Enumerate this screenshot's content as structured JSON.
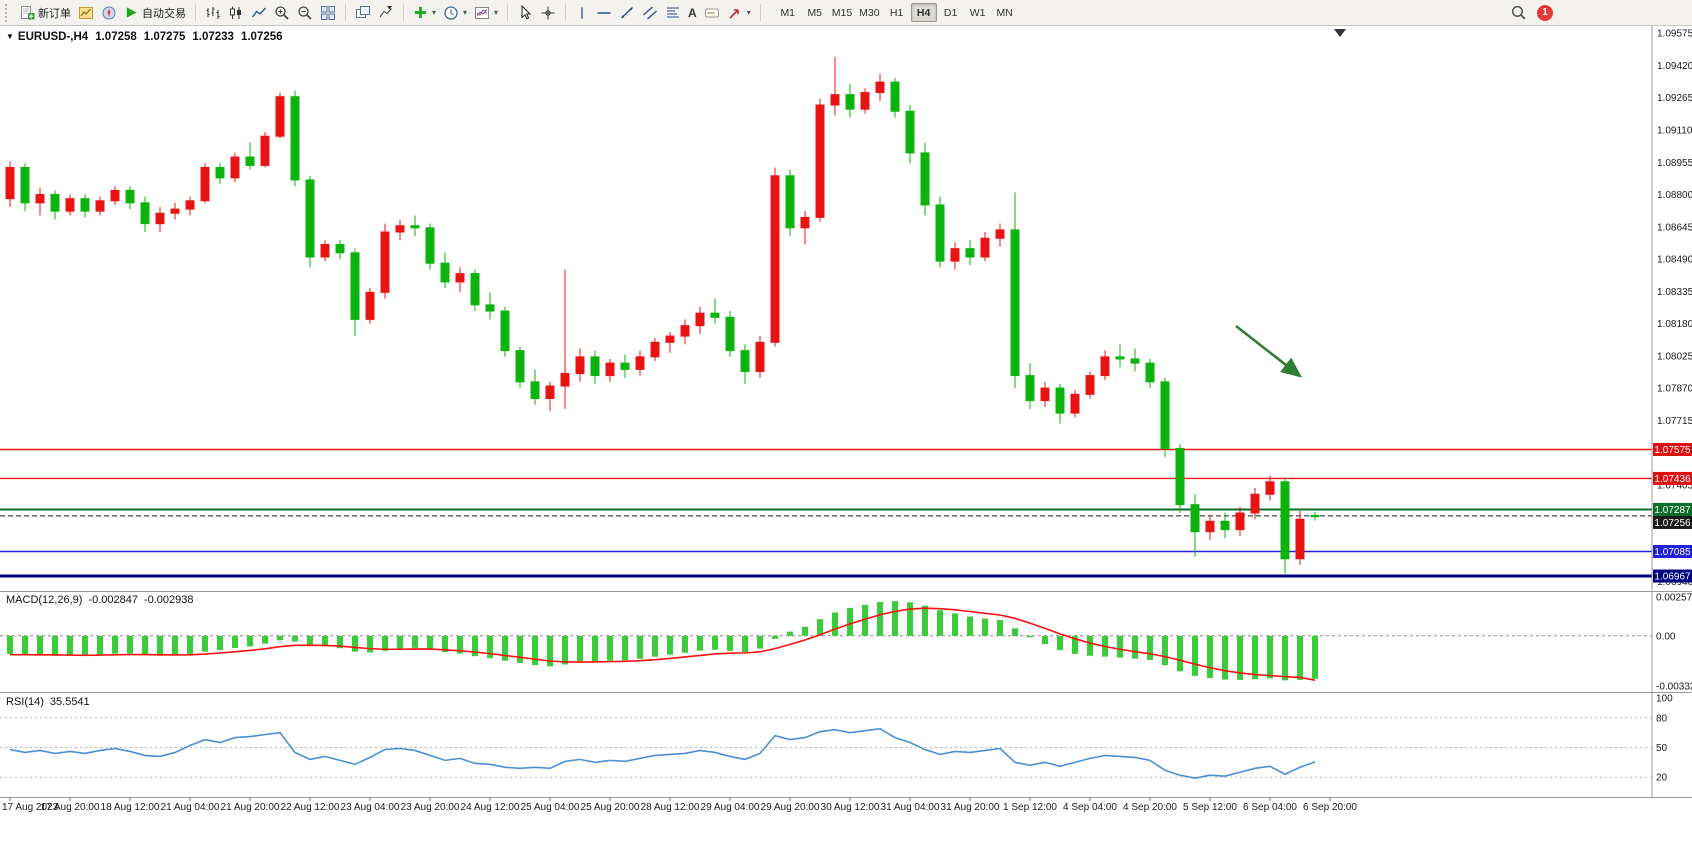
{
  "toolbar": {
    "new_order_label": "新订单",
    "autotrading_label": "自动交易",
    "text_tool_label": "A",
    "timeframes": [
      "M1",
      "M5",
      "M15",
      "M30",
      "H1",
      "H4",
      "D1",
      "W1",
      "MN"
    ],
    "active_timeframe": "H4",
    "notification_badge": "1"
  },
  "header": {
    "symbol": "EURUSD-,H4",
    "open": "1.07258",
    "high": "1.07275",
    "low": "1.07233",
    "close": "1.07256"
  },
  "chart_data": {
    "type": "candlestick",
    "symbol": "EURUSD-",
    "timeframe": "H4",
    "price_range": [
      1.069,
      1.096
    ],
    "bull_color": "#e81414",
    "bear_color": "#0db30d",
    "trend_arrow_color": "#2e7d32",
    "price_ticks": [
      "1.09575",
      "1.09420",
      "1.09265",
      "1.09110",
      "1.08955",
      "1.08800",
      "1.08645",
      "1.08490",
      "1.08335",
      "1.08180",
      "1.08025",
      "1.07870",
      "1.07715",
      "1.07560",
      "1.07405",
      "1.07250",
      "1.07095",
      "1.06940"
    ],
    "time_labels": [
      "17 Aug 2023",
      "17 Aug 20:00",
      "18 Aug 12:00",
      "21 Aug 04:00",
      "21 Aug 20:00",
      "22 Aug 12:00",
      "23 Aug 04:00",
      "23 Aug 20:00",
      "24 Aug 12:00",
      "25 Aug 04:00",
      "25 Aug 20:00",
      "28 Aug 12:00",
      "29 Aug 04:00",
      "29 Aug 20:00",
      "30 Aug 12:00",
      "31 Aug 04:00",
      "31 Aug 20:00",
      "1 Sep 12:00",
      "4 Sep 04:00",
      "4 Sep 20:00",
      "5 Sep 12:00",
      "6 Sep 04:00",
      "6 Sep 20:00"
    ],
    "levels": [
      {
        "price": 1.07575,
        "label": "1.07575",
        "color": "#f01414",
        "width": 1.4,
        "dash": "",
        "tag_bg": "#e01010"
      },
      {
        "price": 1.07436,
        "label": "1.07436",
        "color": "#f01414",
        "width": 1.4,
        "dash": "",
        "tag_bg": "#e01010"
      },
      {
        "price": 1.07287,
        "label": "1.07287",
        "color": "#0a6e2a",
        "width": 2,
        "dash": "",
        "tag_bg": "#0a6e2a"
      },
      {
        "price": 1.07256,
        "label": "1.07256",
        "color": "#1a1a1a",
        "width": 1,
        "dash": "5,3",
        "tag_bg": "#1a1a1a"
      },
      {
        "price": 1.07085,
        "label": "1.07085",
        "color": "#2020dd",
        "width": 1.6,
        "dash": "",
        "tag_bg": "#2020dd"
      },
      {
        "price": 1.06967,
        "label": "1.06967",
        "color": "#000080",
        "width": 3,
        "dash": "",
        "tag_bg": "#000080"
      }
    ],
    "candles": [
      [
        1.0878,
        1.0896,
        1.0874,
        1.0893
      ],
      [
        1.0893,
        1.0895,
        1.0872,
        1.0876
      ],
      [
        1.0876,
        1.0883,
        1.087,
        1.088
      ],
      [
        1.088,
        1.0882,
        1.0868,
        1.0872
      ],
      [
        1.0872,
        1.088,
        1.087,
        1.0878
      ],
      [
        1.0878,
        1.088,
        1.0869,
        1.0872
      ],
      [
        1.0872,
        1.0879,
        1.087,
        1.0877
      ],
      [
        1.0877,
        1.0884,
        1.0875,
        1.0882
      ],
      [
        1.0882,
        1.0884,
        1.0873,
        1.0876
      ],
      [
        1.0876,
        1.0879,
        1.0862,
        1.0866
      ],
      [
        1.0866,
        1.0874,
        1.0862,
        1.0871
      ],
      [
        1.0871,
        1.0876,
        1.0868,
        1.0873
      ],
      [
        1.0873,
        1.0879,
        1.087,
        1.0877
      ],
      [
        1.0877,
        1.0895,
        1.0876,
        1.0893
      ],
      [
        1.0893,
        1.0895,
        1.0885,
        1.0888
      ],
      [
        1.0888,
        1.09,
        1.0886,
        1.0898
      ],
      [
        1.0898,
        1.0905,
        1.0892,
        1.0894
      ],
      [
        1.0894,
        1.091,
        1.0893,
        1.0908
      ],
      [
        1.0908,
        1.0929,
        1.0907,
        1.0927
      ],
      [
        1.0927,
        1.093,
        1.0884,
        1.0887
      ],
      [
        1.0887,
        1.0889,
        1.0845,
        1.085
      ],
      [
        1.085,
        1.0858,
        1.0848,
        1.0856
      ],
      [
        1.0856,
        1.0858,
        1.0849,
        1.0852
      ],
      [
        1.0852,
        1.0854,
        1.0812,
        1.082
      ],
      [
        1.082,
        1.0835,
        1.0818,
        1.0833
      ],
      [
        1.0833,
        1.0866,
        1.083,
        1.0862
      ],
      [
        1.0862,
        1.0868,
        1.0858,
        1.0865
      ],
      [
        1.0865,
        1.087,
        1.086,
        1.0864
      ],
      [
        1.0864,
        1.0866,
        1.0844,
        1.0847
      ],
      [
        1.0847,
        1.0852,
        1.0835,
        1.0838
      ],
      [
        1.0838,
        1.0845,
        1.0833,
        1.0842
      ],
      [
        1.0842,
        1.0844,
        1.0824,
        1.0827
      ],
      [
        1.0827,
        1.0833,
        1.082,
        1.0824
      ],
      [
        1.0824,
        1.0826,
        1.0802,
        1.0805
      ],
      [
        1.0805,
        1.0807,
        1.0787,
        1.079
      ],
      [
        1.079,
        1.0796,
        1.0779,
        1.0782
      ],
      [
        1.0782,
        1.079,
        1.0776,
        1.0788
      ],
      [
        1.0788,
        1.0844,
        1.0777,
        1.0794
      ],
      [
        1.0794,
        1.0806,
        1.079,
        1.0802
      ],
      [
        1.0802,
        1.0805,
        1.0789,
        1.0793
      ],
      [
        1.0793,
        1.0801,
        1.079,
        1.0799
      ],
      [
        1.0799,
        1.0803,
        1.0792,
        1.0796
      ],
      [
        1.0796,
        1.0805,
        1.0793,
        1.0802
      ],
      [
        1.0802,
        1.0811,
        1.08,
        1.0809
      ],
      [
        1.0809,
        1.0814,
        1.0804,
        1.0812
      ],
      [
        1.0812,
        1.082,
        1.0808,
        1.0817
      ],
      [
        1.0817,
        1.0826,
        1.0813,
        1.0823
      ],
      [
        1.0823,
        1.083,
        1.0818,
        1.0821
      ],
      [
        1.0821,
        1.0824,
        1.0802,
        1.0805
      ],
      [
        1.0805,
        1.0808,
        1.0789,
        1.0795
      ],
      [
        1.0795,
        1.0812,
        1.0792,
        1.0809
      ],
      [
        1.0809,
        1.0893,
        1.0807,
        1.0889
      ],
      [
        1.0889,
        1.0892,
        1.086,
        1.0864
      ],
      [
        1.0864,
        1.0872,
        1.0856,
        1.0869
      ],
      [
        1.0869,
        1.0926,
        1.0867,
        1.0923
      ],
      [
        1.0923,
        1.0946,
        1.0918,
        1.0928
      ],
      [
        1.0928,
        1.0933,
        1.0917,
        1.0921
      ],
      [
        1.0921,
        1.0931,
        1.0919,
        1.0929
      ],
      [
        1.0929,
        1.0938,
        1.0925,
        1.0934
      ],
      [
        1.0934,
        1.0936,
        1.0917,
        1.092
      ],
      [
        1.092,
        1.0923,
        1.0895,
        1.09
      ],
      [
        1.09,
        1.0905,
        1.087,
        1.0875
      ],
      [
        1.0875,
        1.0879,
        1.0845,
        1.0848
      ],
      [
        1.0848,
        1.0857,
        1.0844,
        1.0854
      ],
      [
        1.0854,
        1.0858,
        1.0846,
        1.085
      ],
      [
        1.085,
        1.0862,
        1.0848,
        1.0859
      ],
      [
        1.0859,
        1.0866,
        1.0855,
        1.0863
      ],
      [
        1.0863,
        1.0881,
        1.0787,
        1.0793
      ],
      [
        1.0793,
        1.0799,
        1.0777,
        1.0781
      ],
      [
        1.0781,
        1.079,
        1.0778,
        1.0787
      ],
      [
        1.0787,
        1.0789,
        1.077,
        1.0775
      ],
      [
        1.0775,
        1.0786,
        1.0773,
        1.0784
      ],
      [
        1.0784,
        1.0795,
        1.0782,
        1.0793
      ],
      [
        1.0793,
        1.0805,
        1.0791,
        1.0802
      ],
      [
        1.0802,
        1.0808,
        1.0797,
        1.0801
      ],
      [
        1.0801,
        1.0806,
        1.0795,
        1.0799
      ],
      [
        1.0799,
        1.0801,
        1.0787,
        1.079
      ],
      [
        1.079,
        1.0792,
        1.0754,
        1.0758
      ],
      [
        1.0758,
        1.076,
        1.0727,
        1.0731
      ],
      [
        1.0731,
        1.0736,
        1.0706,
        1.0718
      ],
      [
        1.0718,
        1.0726,
        1.0714,
        1.0723
      ],
      [
        1.0723,
        1.0727,
        1.0715,
        1.0719
      ],
      [
        1.0719,
        1.073,
        1.0716,
        1.0727
      ],
      [
        1.0727,
        1.0739,
        1.0724,
        1.0736
      ],
      [
        1.0736,
        1.0745,
        1.0733,
        1.0742
      ],
      [
        1.0742,
        1.0744,
        1.0698,
        1.0705
      ],
      [
        1.0705,
        1.0728,
        1.0702,
        1.0724
      ],
      [
        1.07258,
        1.07275,
        1.07233,
        1.07256
      ]
    ],
    "indicators": {
      "macd": {
        "name": "MACD(12,26,9)",
        "value": "-0.002847",
        "signal_value": "-0.002938",
        "range": [
          -0.003326,
          0.002572
        ],
        "scale_ticks": [
          "0.002572",
          "0.00",
          "-0.003326"
        ],
        "histogram_color": "#3acc3a",
        "signal_color": "#ff0f0f",
        "histogram": [
          -0.0012,
          -0.00125,
          -0.00128,
          -0.00132,
          -0.0013,
          -0.00131,
          -0.00126,
          -0.00118,
          -0.00117,
          -0.00125,
          -0.00132,
          -0.0013,
          -0.00122,
          -0.00105,
          -0.00095,
          -0.0008,
          -0.0007,
          -0.00052,
          -0.0003,
          -0.00038,
          -0.0006,
          -0.0007,
          -0.00082,
          -0.00105,
          -0.0011,
          -0.001,
          -0.00088,
          -0.0008,
          -0.0009,
          -0.00108,
          -0.00118,
          -0.00135,
          -0.00148,
          -0.00165,
          -0.0018,
          -0.00195,
          -0.00202,
          -0.0019,
          -0.00178,
          -0.00172,
          -0.00165,
          -0.00162,
          -0.00152,
          -0.00138,
          -0.00125,
          -0.00112,
          -0.00098,
          -0.00092,
          -0.001,
          -0.00108,
          -0.00085,
          -0.0002,
          0.00028,
          0.0006,
          0.0011,
          0.00155,
          0.00185,
          0.00205,
          0.00225,
          0.0023,
          0.00222,
          0.002,
          0.0017,
          0.00148,
          0.00128,
          0.00115,
          0.00105,
          0.0005,
          -0.0001,
          -0.00055,
          -0.00095,
          -0.0012,
          -0.00132,
          -0.00138,
          -0.00145,
          -0.00152,
          -0.0016,
          -0.00195,
          -0.00235,
          -0.00265,
          -0.0028,
          -0.0029,
          -0.00292,
          -0.00288,
          -0.00282,
          -0.00295,
          -0.00292,
          -0.00285
        ],
        "signal": [
          -0.00125,
          -0.00125,
          -0.00126,
          -0.00127,
          -0.00128,
          -0.00129,
          -0.00128,
          -0.00126,
          -0.00124,
          -0.00124,
          -0.00126,
          -0.00127,
          -0.00126,
          -0.00121,
          -0.00114,
          -0.00106,
          -0.00097,
          -0.00086,
          -0.00072,
          -0.00063,
          -0.00062,
          -0.00064,
          -0.00068,
          -0.00077,
          -0.00085,
          -0.00089,
          -0.00089,
          -0.00087,
          -0.00088,
          -0.00093,
          -0.00099,
          -0.00108,
          -0.00118,
          -0.0013,
          -0.00142,
          -0.00155,
          -0.00167,
          -0.00173,
          -0.00174,
          -0.00173,
          -0.00171,
          -0.00169,
          -0.00165,
          -0.00158,
          -0.0015,
          -0.0014,
          -0.0013,
          -0.0012,
          -0.00115,
          -0.00113,
          -0.00106,
          -0.00085,
          -0.00057,
          -0.00028,
          7e-05,
          0.00044,
          0.00079,
          0.0011,
          0.00139,
          0.00162,
          0.00177,
          0.00183,
          0.0018,
          0.00172,
          0.00161,
          0.00149,
          0.00138,
          0.00116,
          0.00084,
          0.00049,
          0.00013,
          -0.0002,
          -0.00048,
          -0.00071,
          -0.00089,
          -0.00105,
          -0.00119,
          -0.00138,
          -0.00162,
          -0.00188,
          -0.00211,
          -0.00231,
          -0.00246,
          -0.00257,
          -0.00263,
          -0.00271,
          -0.00276,
          -0.00294
        ]
      },
      "rsi": {
        "name": "RSI(14)",
        "value": "35.5541",
        "scale_ticks": [
          "100",
          "80",
          "50",
          "20"
        ],
        "levels": [
          80,
          50,
          20
        ],
        "line_color": "#4a8fd5",
        "values": [
          48,
          45,
          47,
          44,
          46,
          44,
          47,
          49,
          46,
          42,
          41,
          45,
          52,
          58,
          55,
          60,
          61,
          63,
          65,
          45,
          38,
          41,
          37,
          33,
          40,
          48,
          49,
          47,
          42,
          37,
          39,
          34,
          33,
          30,
          29,
          30,
          29,
          36,
          38,
          35,
          37,
          36,
          39,
          42,
          43,
          44,
          47,
          45,
          41,
          38,
          44,
          62,
          58,
          60,
          66,
          68,
          65,
          67,
          69,
          60,
          55,
          48,
          43,
          46,
          45,
          47,
          49,
          35,
          32,
          35,
          31,
          35,
          39,
          42,
          41,
          40,
          37,
          27,
          22,
          19,
          22,
          21,
          25,
          29,
          31,
          23,
          30,
          35.5
        ]
      }
    }
  }
}
